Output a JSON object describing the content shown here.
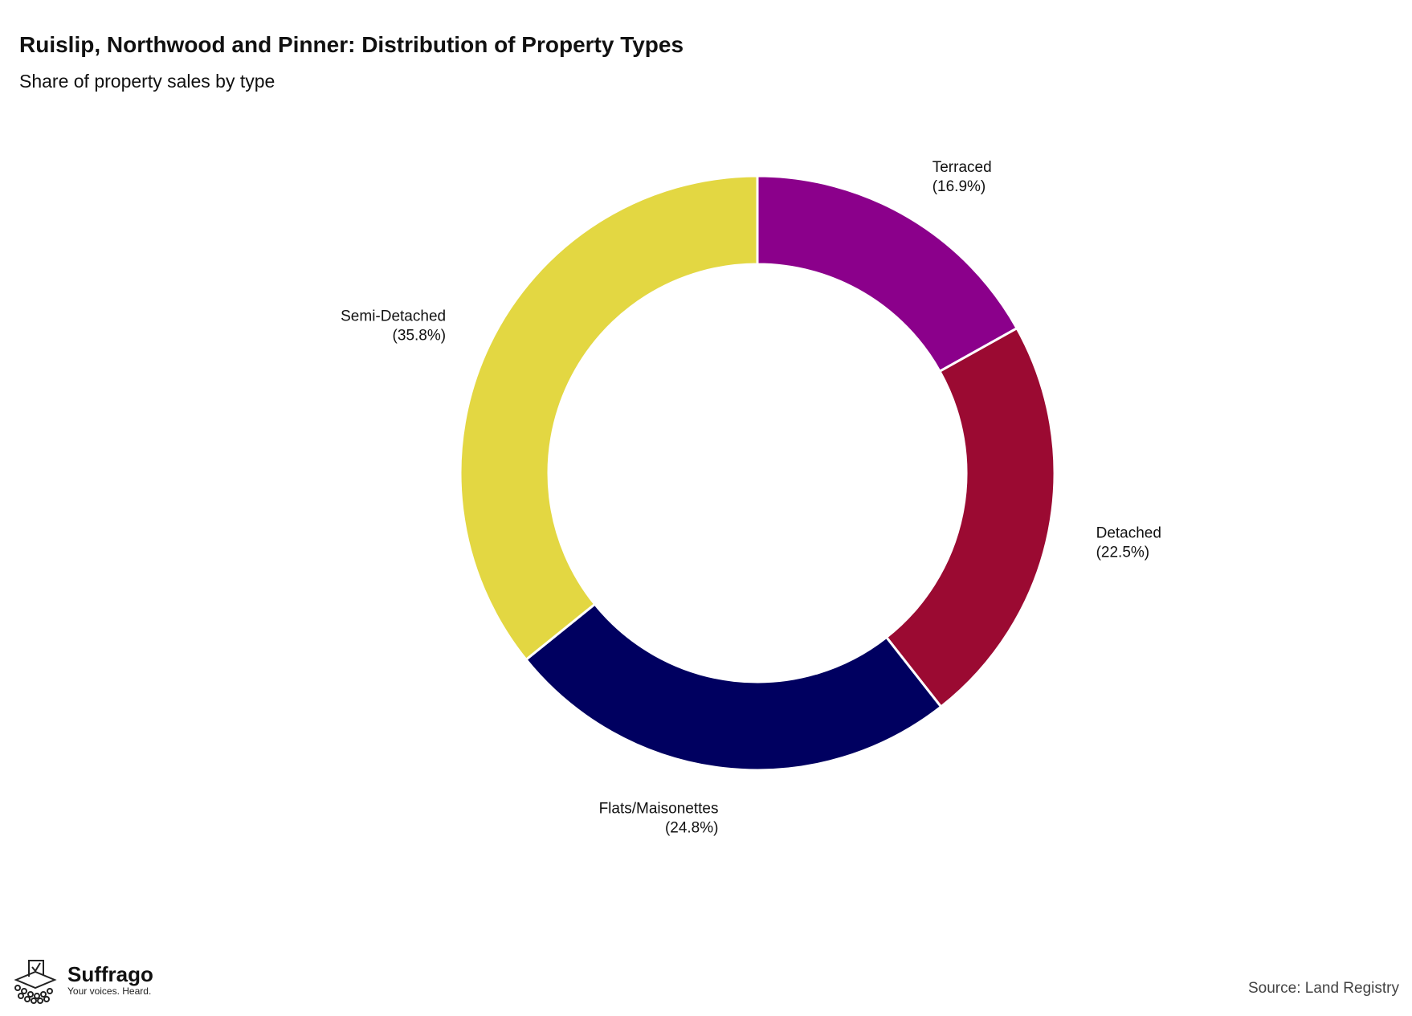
{
  "header": {
    "title": "Ruislip, Northwood and Pinner: Distribution of Property Types",
    "subtitle": "Share of property sales by type"
  },
  "chart_data": {
    "type": "pie",
    "variant": "donut",
    "title": "Ruislip, Northwood and Pinner: Distribution of Property Types",
    "subtitle": "Share of property sales by type",
    "slices": [
      {
        "label": "Terraced",
        "value": 16.9,
        "display": "(16.9%)",
        "color": "#8B008B"
      },
      {
        "label": "Detached",
        "value": 22.5,
        "display": "(22.5%)",
        "color": "#9B0A32"
      },
      {
        "label": "Flats/Maisonettes",
        "value": 24.8,
        "display": "(24.8%)",
        "color": "#000060"
      },
      {
        "label": "Semi-Detached",
        "value": 35.8,
        "display": "(35.8%)",
        "color": "#E3D742"
      }
    ],
    "start": "top",
    "direction": "clockwise"
  },
  "footer": {
    "brand": "Suffrago",
    "tagline": "Your voices. Heard.",
    "source": "Source: Land Registry"
  }
}
